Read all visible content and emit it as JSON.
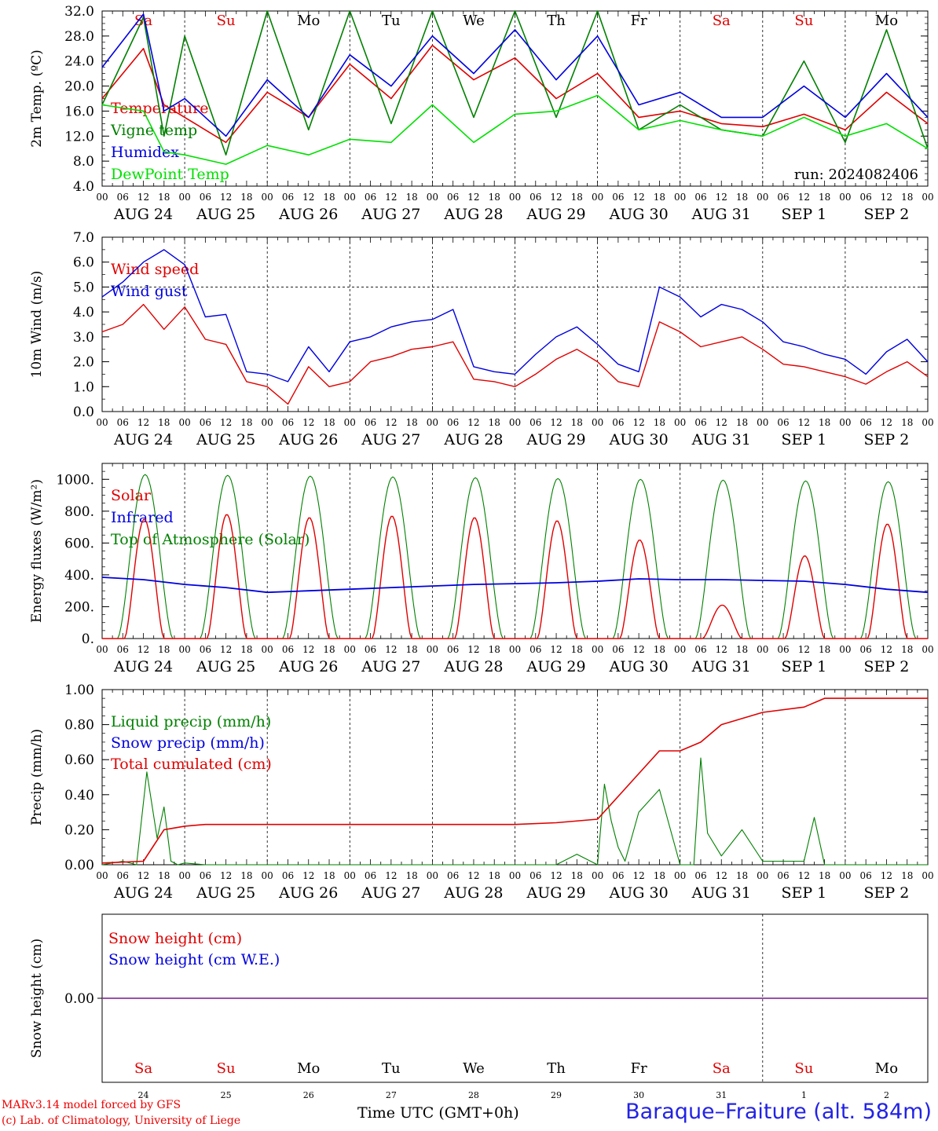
{
  "chart_data": [
    {
      "type": "line",
      "ylabel": "2m Temp. (ºC)",
      "ylim": [
        4.0,
        32.0
      ],
      "yticks": [
        "32.0",
        "28.0",
        "24.0",
        "20.0",
        "16.0",
        "12.0",
        "8.0",
        "4.0"
      ],
      "x_hours": [
        0,
        12,
        18,
        24,
        36,
        48,
        60,
        72,
        84,
        96,
        108,
        120,
        132,
        144,
        156,
        168,
        180,
        192,
        204,
        216,
        228,
        240
      ],
      "run_label": "run: 2024082406",
      "series": [
        {
          "name": "Temperature",
          "color": "#e00000",
          "values": [
            18,
            26,
            17,
            15,
            11,
            19,
            15,
            23.5,
            18,
            26.5,
            21,
            24.5,
            18,
            22,
            15,
            16,
            14,
            13.5,
            15.5,
            13,
            19,
            14
          ]
        },
        {
          "name": "Vigne temp",
          "color": "#008000",
          "values": [
            17,
            31,
            12,
            28,
            9,
            33,
            13,
            33,
            14,
            34,
            15,
            34,
            15,
            33,
            13,
            17,
            13,
            12,
            24,
            11,
            29,
            10
          ]
        },
        {
          "name": "Humidex",
          "color": "#0000e0",
          "values": [
            23,
            31.5,
            16,
            18,
            12,
            21,
            15,
            25,
            20,
            28,
            22,
            29,
            21,
            28,
            17,
            19,
            15,
            15,
            20,
            15,
            22,
            15
          ]
        },
        {
          "name": "DewPoint Temp",
          "color": "#00e000",
          "values": [
            17,
            16,
            9.5,
            9,
            7.5,
            10.5,
            9,
            11.5,
            11,
            17,
            11,
            15.5,
            16,
            18.5,
            13,
            14.5,
            13,
            12,
            15,
            12,
            14,
            10
          ]
        }
      ]
    },
    {
      "type": "line",
      "ylabel": "10m Wind (m/s)",
      "ylim": [
        0.0,
        7.0
      ],
      "yticks": [
        "7.0",
        "6.0",
        "5.0",
        "4.0",
        "3.0",
        "2.0",
        "1.0",
        "0.0"
      ],
      "x_hours": [
        0,
        6,
        12,
        18,
        24,
        30,
        36,
        42,
        48,
        54,
        60,
        66,
        72,
        78,
        84,
        90,
        96,
        102,
        108,
        114,
        120,
        126,
        132,
        138,
        144,
        150,
        156,
        162,
        168,
        174,
        180,
        186,
        192,
        198,
        204,
        210,
        216,
        222,
        228,
        234,
        240
      ],
      "series": [
        {
          "name": "Wind speed",
          "color": "#e00000",
          "values": [
            3.2,
            3.5,
            4.3,
            3.3,
            4.2,
            2.9,
            2.7,
            1.2,
            1.0,
            0.3,
            1.8,
            1.0,
            1.2,
            2.0,
            2.2,
            2.5,
            2.6,
            2.8,
            1.3,
            1.2,
            1.0,
            1.5,
            2.1,
            2.5,
            2.0,
            1.2,
            1.0,
            3.6,
            3.2,
            2.6,
            2.8,
            3.0,
            2.5,
            1.9,
            1.8,
            1.6,
            1.4,
            1.1,
            1.6,
            2.0,
            1.4
          ]
        },
        {
          "name": "Wind gust",
          "color": "#0000e0",
          "values": [
            4.6,
            5.2,
            6.0,
            6.5,
            5.9,
            3.8,
            3.9,
            1.6,
            1.5,
            1.2,
            2.6,
            1.6,
            2.8,
            3.0,
            3.4,
            3.6,
            3.7,
            4.1,
            1.8,
            1.6,
            1.5,
            2.3,
            3.0,
            3.4,
            2.7,
            1.9,
            1.6,
            5.0,
            4.6,
            3.8,
            4.3,
            4.1,
            3.6,
            2.8,
            2.6,
            2.3,
            2.1,
            1.5,
            2.4,
            2.9,
            2.0
          ]
        }
      ]
    },
    {
      "type": "line",
      "ylabel": "Energy fluxes (W/m²)",
      "ylim": [
        0,
        1100
      ],
      "yticks": [
        "1000.",
        "800.",
        "600.",
        "400.",
        "200.",
        "0."
      ],
      "series": [
        {
          "name": "Solar",
          "color": "#e00000",
          "daily_peaks": [
            750,
            780,
            760,
            770,
            760,
            740,
            620,
            210,
            520,
            720
          ]
        },
        {
          "name": "Infrared",
          "color": "#0000e0",
          "x_hours": [
            0,
            12,
            24,
            36,
            48,
            60,
            72,
            84,
            96,
            108,
            120,
            132,
            144,
            156,
            168,
            180,
            192,
            204,
            216,
            228,
            240
          ],
          "values": [
            385,
            370,
            340,
            320,
            290,
            300,
            310,
            320,
            330,
            340,
            345,
            350,
            360,
            375,
            370,
            370,
            365,
            360,
            340,
            310,
            290
          ]
        },
        {
          "name": "Top of Atmosphere (Solar)",
          "color": "#008000",
          "daily_peaks": [
            1030,
            1025,
            1020,
            1015,
            1010,
            1005,
            1000,
            995,
            990,
            985
          ]
        }
      ]
    },
    {
      "type": "line",
      "ylabel": "Precip (mm/h)",
      "ylim": [
        0.0,
        1.0
      ],
      "yticks": [
        "1.00",
        "0.80",
        "0.60",
        "0.40",
        "0.20",
        "0.00"
      ],
      "series": [
        {
          "name": "Liquid precip (mm/h)",
          "color": "#008000",
          "x_hours": [
            0,
            6,
            10,
            13,
            16,
            18,
            20,
            22,
            24,
            30,
            132,
            138,
            144,
            146,
            148,
            150,
            152,
            156,
            162,
            168,
            172,
            174,
            176,
            180,
            186,
            192,
            204,
            207,
            210,
            216,
            228,
            240
          ],
          "values": [
            0,
            0.02,
            0.0,
            0.53,
            0.15,
            0.33,
            0.02,
            0.0,
            0.01,
            0.0,
            0.0,
            0.06,
            0.0,
            0.46,
            0.25,
            0.1,
            0.02,
            0.3,
            0.43,
            0.0,
            0.0,
            0.61,
            0.18,
            0.05,
            0.2,
            0.02,
            0.02,
            0.27,
            0.0,
            0.0,
            0.0,
            0.0
          ]
        },
        {
          "name": "Snow precip (mm/h)",
          "color": "#0000e0",
          "values": []
        },
        {
          "name": "Total cumulated (cm)",
          "color": "#e00000",
          "x_hours": [
            0,
            12,
            18,
            24,
            30,
            60,
            120,
            132,
            144,
            150,
            156,
            162,
            168,
            174,
            180,
            192,
            204,
            210,
            240
          ],
          "values": [
            0.01,
            0.02,
            0.2,
            0.22,
            0.23,
            0.23,
            0.23,
            0.24,
            0.26,
            0.39,
            0.52,
            0.65,
            0.65,
            0.7,
            0.8,
            0.87,
            0.9,
            0.95,
            0.95
          ]
        }
      ]
    },
    {
      "type": "line",
      "ylabel": "Snow height (cm)",
      "yticks": [
        "0.00"
      ],
      "series": [
        {
          "name": "Snow height (cm)",
          "color": "#e00000",
          "values": [
            0
          ]
        },
        {
          "name": "Snow height (cm W.E.)",
          "color": "#0000e0",
          "values": [
            0
          ]
        }
      ]
    }
  ],
  "day_names": [
    "Sa",
    "Su",
    "Mo",
    "Tu",
    "We",
    "Th",
    "Fr",
    "Sa",
    "Su",
    "Mo"
  ],
  "weekend_color": "#e00000",
  "weekday_color": "#000000",
  "date_labels": [
    "AUG 24",
    "AUG 25",
    "AUG 26",
    "AUG 27",
    "AUG 28",
    "AUG 29",
    "AUG 30",
    "AUG 31",
    "SEP  1",
    "SEP  2"
  ],
  "day_numbers": [
    "24",
    "25",
    "26",
    "27",
    "28",
    "29",
    "30",
    "31",
    "1",
    "2"
  ],
  "hour_labels": [
    "00",
    "06",
    "12",
    "18"
  ],
  "end_hour_label": "00",
  "footer": {
    "credit_line1": "MARv3.14 model forced by GFS",
    "credit_line2": "(c) Lab. of Climatology, University of Liege",
    "time_label": "Time UTC (GMT+0h)",
    "station": "Baraque–Fraiture (alt. 584m)"
  }
}
